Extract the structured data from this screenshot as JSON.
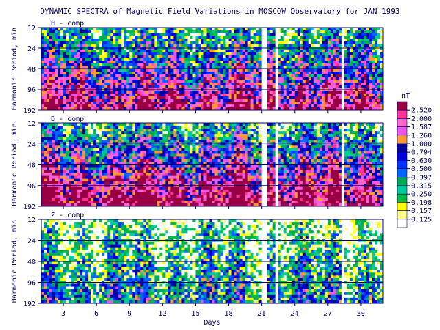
{
  "chart_data": {
    "type": "heatmap",
    "title": "DYNAMIC SPECTRA of Magnetic Field Variations in MOSCOW Observatory for JAN 1993",
    "xlabel": "Days",
    "ylabel": "Harmonic Period, min",
    "x_ticks": [
      3,
      6,
      9,
      12,
      15,
      18,
      21,
      24,
      27,
      30
    ],
    "xlim": [
      1,
      32
    ],
    "y_ticks": [
      12,
      24,
      48,
      96,
      192
    ],
    "y_scale": "log2",
    "gaps_days": [
      [
        21.0,
        21.6
      ],
      [
        22.2,
        22.6
      ],
      [
        28.2,
        28.6
      ]
    ],
    "panels": [
      {
        "label": "H - comp",
        "intensity": 0.75
      },
      {
        "label": "D - comp",
        "intensity": 0.85
      },
      {
        "label": "Z - comp",
        "intensity": 0.35
      }
    ],
    "colorbar": {
      "unit": "nT",
      "levels": [
        "2.520",
        "2.000",
        "1.587",
        "1.260",
        "1.000",
        "0.794",
        "0.630",
        "0.500",
        "0.397",
        "0.315",
        "0.250",
        "0.198",
        "0.157",
        "0.125"
      ],
      "colors": [
        "#990044",
        "#ff3399",
        "#ff66cc",
        "#ee55ee",
        "#ff9933",
        "#000099",
        "#0000dd",
        "#0033ff",
        "#0066ff",
        "#00aa55",
        "#00cc99",
        "#00bb44",
        "#ffff00",
        "#ffff88",
        "#ffffff"
      ]
    }
  }
}
